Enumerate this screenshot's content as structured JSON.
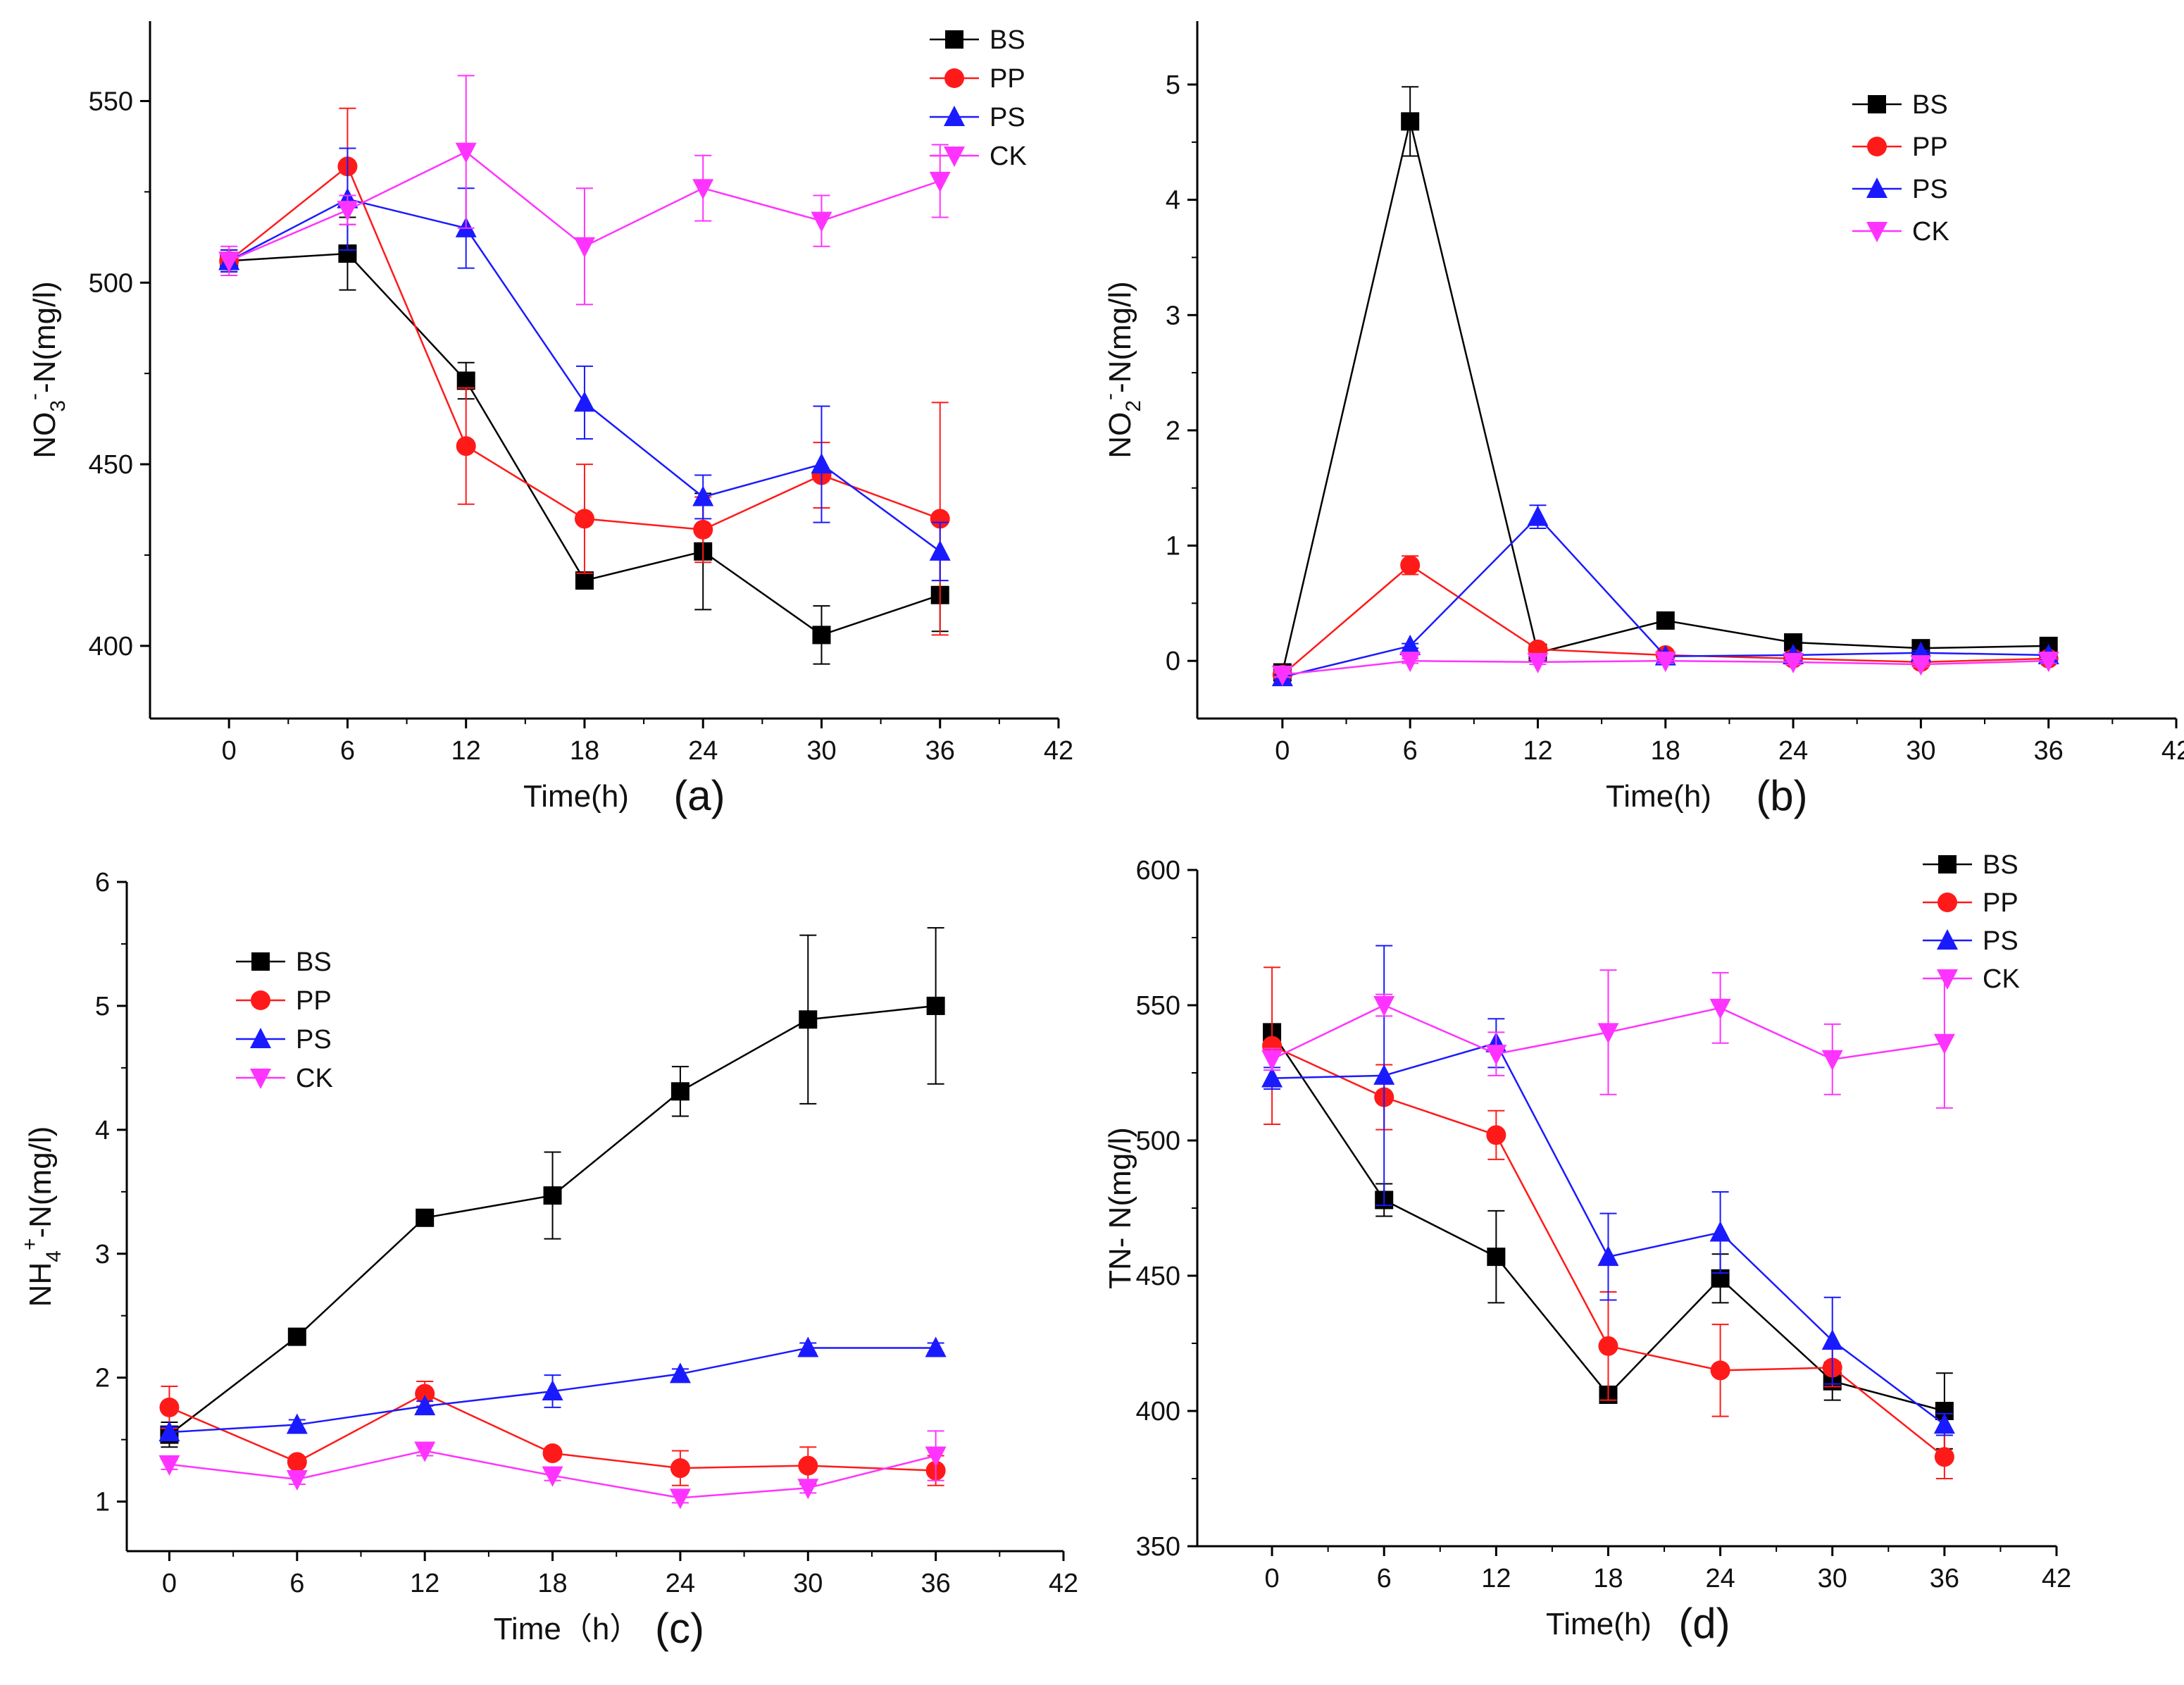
{
  "chart_data": [
    {
      "type": "line",
      "panel": "(a)",
      "ylabel": "NO3−-N(mg/l)",
      "ylabel_parts": {
        "base": "NO",
        "sub": "3",
        "sup": "-",
        "rest": "-N(mg/l)"
      },
      "xlabel": "Time(h)",
      "x": [
        0,
        6,
        12,
        18,
        24,
        30,
        36
      ],
      "xlim": [
        -4,
        42
      ],
      "ylim": [
        380,
        572
      ],
      "xticks": [
        0,
        6,
        12,
        18,
        24,
        30,
        36,
        42
      ],
      "yticks": [
        400,
        450,
        500,
        550
      ],
      "legend_position": "top-right",
      "series": [
        {
          "name": "BS",
          "values": [
            506,
            508,
            473,
            418,
            426,
            403,
            414
          ],
          "errors": [
            3,
            10,
            5,
            0,
            16,
            8,
            10
          ]
        },
        {
          "name": "PP",
          "values": [
            506,
            532,
            455,
            435,
            432,
            447,
            435
          ],
          "errors": [
            3,
            16,
            16,
            15,
            9,
            9,
            32
          ]
        },
        {
          "name": "PS",
          "values": [
            506,
            523,
            515,
            467,
            441,
            450,
            426
          ],
          "errors": [
            3,
            14,
            11,
            10,
            6,
            16,
            8
          ]
        },
        {
          "name": "CK",
          "values": [
            506,
            520,
            536,
            510,
            526,
            517,
            528
          ],
          "errors": [
            4,
            4,
            21,
            16,
            9,
            7,
            10
          ]
        }
      ]
    },
    {
      "type": "line",
      "panel": "(b)",
      "ylabel": "NO2−-N(mg/l)",
      "ylabel_parts": {
        "base": "NO",
        "sub": "2",
        "sup": "-",
        "rest": "-N(mg/l)"
      },
      "xlabel": "Time(h)",
      "x": [
        0,
        6,
        12,
        18,
        24,
        30,
        36
      ],
      "xlim": [
        -4,
        42
      ],
      "ylim": [
        -0.5,
        5.55
      ],
      "xticks": [
        0,
        6,
        12,
        18,
        24,
        30,
        36,
        42
      ],
      "yticks": [
        0,
        1,
        2,
        3,
        4,
        5
      ],
      "legend_position": "top-right",
      "series": [
        {
          "name": "BS",
          "values": [
            -0.1,
            4.68,
            0.07,
            0.35,
            0.16,
            0.11,
            0.13
          ],
          "errors": [
            0.02,
            0.3,
            0.02,
            0.02,
            0.02,
            0.02,
            0.02
          ]
        },
        {
          "name": "PP",
          "values": [
            -0.12,
            0.83,
            0.1,
            0.05,
            0.02,
            -0.01,
            0.02
          ],
          "errors": [
            0.02,
            0.08,
            0.02,
            0.02,
            0.02,
            0.02,
            0.02
          ]
        },
        {
          "name": "PS",
          "values": [
            -0.14,
            0.13,
            1.25,
            0.04,
            0.05,
            0.07,
            0.05
          ],
          "errors": [
            0.02,
            0.02,
            0.1,
            0.02,
            0.02,
            0.02,
            0.02
          ]
        },
        {
          "name": "CK",
          "values": [
            -0.12,
            0.0,
            -0.01,
            0.0,
            -0.01,
            -0.03,
            0.0
          ],
          "errors": [
            0.02,
            0.02,
            0.02,
            0.02,
            0.02,
            0.02,
            0.02
          ]
        }
      ]
    },
    {
      "type": "line",
      "panel": "(c)",
      "ylabel": "NH4+-N(mg/l)",
      "ylabel_parts": {
        "base": "NH",
        "sub": "4",
        "sup": "+",
        "rest": "-N(mg/l)"
      },
      "xlabel": "Time（h）",
      "x": [
        0,
        6,
        12,
        18,
        24,
        30,
        36
      ],
      "xlim": [
        -2,
        42
      ],
      "ylim": [
        0.6,
        6
      ],
      "xticks": [
        0,
        6,
        12,
        18,
        24,
        30,
        36,
        42
      ],
      "yticks": [
        1,
        2,
        3,
        4,
        5,
        6
      ],
      "legend_position": "upper-left",
      "series": [
        {
          "name": "BS",
          "values": [
            1.54,
            2.33,
            3.29,
            3.47,
            4.31,
            4.89,
            5.0
          ],
          "errors": [
            0.1,
            0.04,
            0.04,
            0.35,
            0.2,
            0.68,
            0.63
          ]
        },
        {
          "name": "PP",
          "values": [
            1.76,
            1.32,
            1.87,
            1.39,
            1.27,
            1.29,
            1.25
          ],
          "errors": [
            0.17,
            0.04,
            0.1,
            0.04,
            0.14,
            0.15,
            0.12
          ]
        },
        {
          "name": "PS",
          "values": [
            1.56,
            1.62,
            1.77,
            1.89,
            2.03,
            2.24,
            2.24
          ],
          "errors": [
            0.04,
            0.04,
            0.04,
            0.13,
            0.04,
            0.04,
            0.04
          ]
        },
        {
          "name": "CK",
          "values": [
            1.3,
            1.18,
            1.41,
            1.21,
            1.03,
            1.11,
            1.37
          ],
          "errors": [
            0.04,
            0.04,
            0.04,
            0.04,
            0.04,
            0.04,
            0.2
          ]
        }
      ]
    },
    {
      "type": "line",
      "panel": "(d)",
      "ylabel": "TN- N(mg/l)",
      "xlabel": "Time(h)",
      "x": [
        0,
        6,
        12,
        18,
        24,
        30,
        36
      ],
      "xlim": [
        -4,
        42
      ],
      "ylim": [
        350,
        600
      ],
      "xticks": [
        0,
        6,
        12,
        18,
        24,
        30,
        36,
        42
      ],
      "yticks": [
        350,
        400,
        450,
        500,
        550,
        600
      ],
      "legend_position": "top-right",
      "series": [
        {
          "name": "BS",
          "values": [
            540,
            478,
            457,
            406,
            449,
            411,
            400
          ],
          "errors": [
            3,
            6,
            17,
            3,
            9,
            7,
            14
          ]
        },
        {
          "name": "PP",
          "values": [
            535,
            516,
            502,
            424,
            415,
            416,
            383
          ],
          "errors": [
            29,
            12,
            9,
            20,
            17,
            7,
            8
          ]
        },
        {
          "name": "PS",
          "values": [
            523,
            524,
            536,
            457,
            466,
            426,
            395
          ],
          "errors": [
            4,
            48,
            9,
            16,
            15,
            16,
            4
          ]
        },
        {
          "name": "CK",
          "values": [
            530,
            550,
            532,
            540,
            549,
            530,
            536
          ],
          "errors": [
            4,
            4,
            8,
            23,
            13,
            13,
            24
          ]
        }
      ]
    }
  ],
  "series_colors": {
    "BS": "#000000",
    "PP": "#ff1a1a",
    "PS": "#1a1aff",
    "CK": "#ff33ff"
  },
  "marker_icons": {
    "BS": "square-marker",
    "PP": "circle-marker",
    "PS": "triangle-up-marker",
    "CK": "triangle-down-marker"
  }
}
